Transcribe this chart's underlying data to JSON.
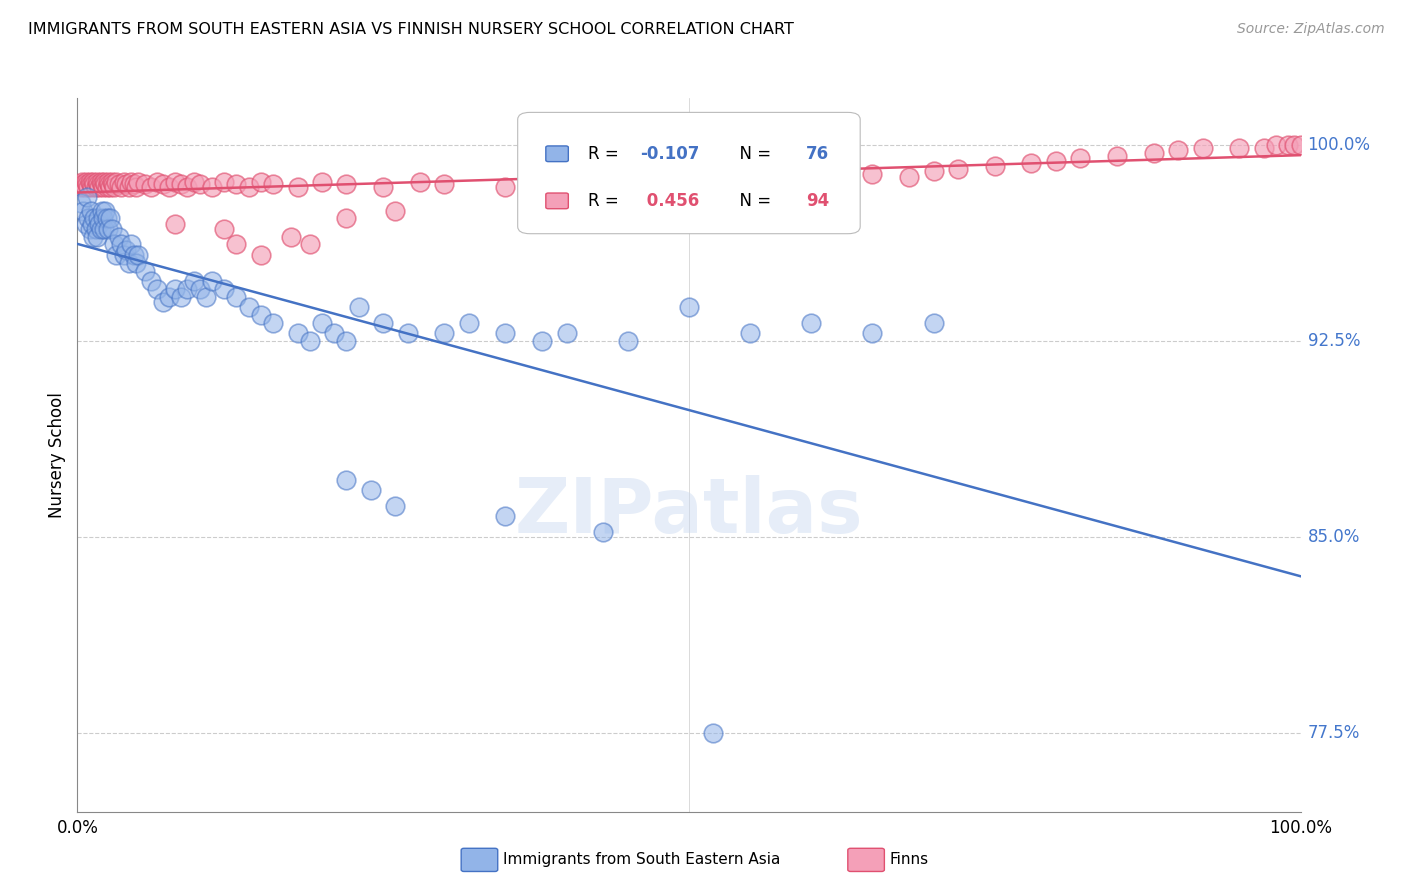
{
  "title": "IMMIGRANTS FROM SOUTH EASTERN ASIA VS FINNISH NURSERY SCHOOL CORRELATION CHART",
  "source": "Source: ZipAtlas.com",
  "ylabel": "Nursery School",
  "xlim": [
    0.0,
    1.0
  ],
  "ylim": [
    0.745,
    1.018
  ],
  "yticks": [
    0.775,
    0.85,
    0.925,
    1.0
  ],
  "ytick_labels": [
    "77.5%",
    "85.0%",
    "92.5%",
    "100.0%"
  ],
  "blue_R": -0.107,
  "blue_N": 76,
  "pink_R": 0.456,
  "pink_N": 94,
  "blue_color": "#92B4E8",
  "pink_color": "#F4A0B8",
  "blue_edge_color": "#4472C4",
  "pink_edge_color": "#E05070",
  "blue_line_color": "#4472C4",
  "pink_line_color": "#E05070",
  "legend_label_blue": "Immigrants from South Eastern Asia",
  "legend_label_pink": "Finns",
  "blue_scatter_x": [
    0.003,
    0.005,
    0.007,
    0.008,
    0.009,
    0.01,
    0.011,
    0.012,
    0.013,
    0.014,
    0.015,
    0.016,
    0.017,
    0.018,
    0.019,
    0.02,
    0.021,
    0.022,
    0.023,
    0.024,
    0.025,
    0.027,
    0.028,
    0.03,
    0.032,
    0.034,
    0.036,
    0.038,
    0.04,
    0.042,
    0.044,
    0.046,
    0.048,
    0.05,
    0.055,
    0.06,
    0.065,
    0.07,
    0.075,
    0.08,
    0.085,
    0.09,
    0.095,
    0.1,
    0.105,
    0.11,
    0.12,
    0.13,
    0.14,
    0.15,
    0.16,
    0.18,
    0.19,
    0.2,
    0.21,
    0.22,
    0.23,
    0.25,
    0.27,
    0.3,
    0.32,
    0.35,
    0.38,
    0.4,
    0.45,
    0.5,
    0.55,
    0.6,
    0.65,
    0.7,
    0.22,
    0.24,
    0.26,
    0.35,
    0.43,
    0.52
  ],
  "blue_scatter_y": [
    0.978,
    0.975,
    0.97,
    0.98,
    0.972,
    0.968,
    0.975,
    0.97,
    0.965,
    0.972,
    0.968,
    0.965,
    0.972,
    0.97,
    0.968,
    0.975,
    0.972,
    0.968,
    0.975,
    0.972,
    0.968,
    0.972,
    0.968,
    0.962,
    0.958,
    0.965,
    0.962,
    0.958,
    0.96,
    0.955,
    0.962,
    0.958,
    0.955,
    0.958,
    0.952,
    0.948,
    0.945,
    0.94,
    0.942,
    0.945,
    0.942,
    0.945,
    0.948,
    0.945,
    0.942,
    0.948,
    0.945,
    0.942,
    0.938,
    0.935,
    0.932,
    0.928,
    0.925,
    0.932,
    0.928,
    0.925,
    0.938,
    0.932,
    0.928,
    0.928,
    0.932,
    0.928,
    0.925,
    0.928,
    0.925,
    0.938,
    0.928,
    0.932,
    0.928,
    0.932,
    0.872,
    0.868,
    0.862,
    0.858,
    0.852,
    0.775
  ],
  "pink_scatter_x": [
    0.002,
    0.003,
    0.004,
    0.005,
    0.006,
    0.007,
    0.008,
    0.009,
    0.01,
    0.011,
    0.012,
    0.013,
    0.014,
    0.015,
    0.016,
    0.017,
    0.018,
    0.019,
    0.02,
    0.021,
    0.022,
    0.023,
    0.024,
    0.025,
    0.026,
    0.027,
    0.028,
    0.029,
    0.03,
    0.032,
    0.034,
    0.036,
    0.038,
    0.04,
    0.042,
    0.044,
    0.046,
    0.048,
    0.05,
    0.055,
    0.06,
    0.065,
    0.07,
    0.075,
    0.08,
    0.085,
    0.09,
    0.095,
    0.1,
    0.11,
    0.12,
    0.13,
    0.14,
    0.15,
    0.16,
    0.18,
    0.2,
    0.22,
    0.25,
    0.28,
    0.3,
    0.35,
    0.38,
    0.4,
    0.45,
    0.5,
    0.55,
    0.6,
    0.65,
    0.68,
    0.7,
    0.72,
    0.75,
    0.78,
    0.8,
    0.82,
    0.85,
    0.88,
    0.9,
    0.92,
    0.95,
    0.97,
    0.98,
    0.99,
    0.995,
    1.0,
    0.13,
    0.15,
    0.175,
    0.19,
    0.08,
    0.12,
    0.22,
    0.26
  ],
  "pink_scatter_y": [
    0.985,
    0.984,
    0.986,
    0.985,
    0.984,
    0.986,
    0.985,
    0.984,
    0.986,
    0.985,
    0.984,
    0.986,
    0.985,
    0.984,
    0.986,
    0.985,
    0.984,
    0.986,
    0.985,
    0.984,
    0.986,
    0.985,
    0.984,
    0.986,
    0.985,
    0.984,
    0.986,
    0.985,
    0.984,
    0.986,
    0.985,
    0.984,
    0.986,
    0.985,
    0.984,
    0.986,
    0.985,
    0.984,
    0.986,
    0.985,
    0.984,
    0.986,
    0.985,
    0.984,
    0.986,
    0.985,
    0.984,
    0.986,
    0.985,
    0.984,
    0.986,
    0.985,
    0.984,
    0.986,
    0.985,
    0.984,
    0.986,
    0.985,
    0.984,
    0.986,
    0.985,
    0.984,
    0.986,
    0.985,
    0.986,
    0.985,
    0.988,
    0.986,
    0.989,
    0.988,
    0.99,
    0.991,
    0.992,
    0.993,
    0.994,
    0.995,
    0.996,
    0.997,
    0.998,
    0.999,
    0.999,
    0.999,
    1.0,
    1.0,
    1.0,
    1.0,
    0.962,
    0.958,
    0.965,
    0.962,
    0.97,
    0.968,
    0.972,
    0.975
  ]
}
